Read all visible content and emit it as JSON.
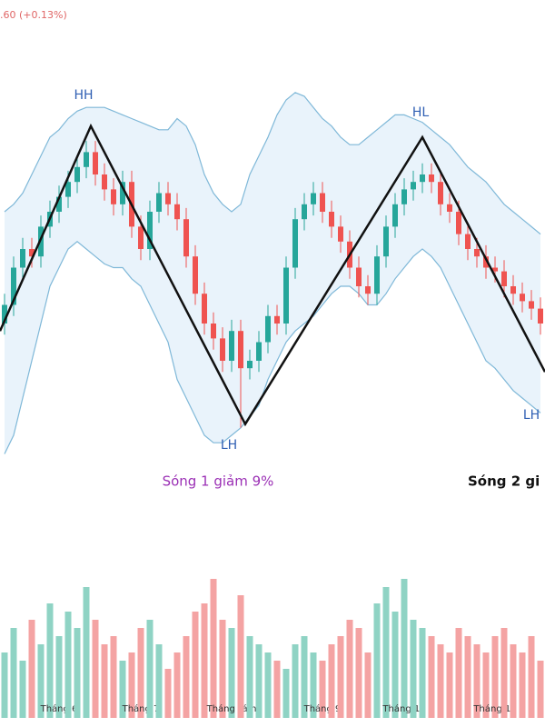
{
  "chart_data": {
    "type": "candlestick",
    "header": ".60 (+0.13%)",
    "categories": [
      null,
      null,
      null,
      null,
      null,
      null,
      "Tháng 6",
      null,
      null,
      null,
      null,
      null,
      null,
      null,
      null,
      "Tháng 7",
      null,
      null,
      null,
      null,
      null,
      null,
      null,
      null,
      null,
      "Tháng Tám",
      null,
      null,
      null,
      null,
      null,
      null,
      null,
      null,
      null,
      "Tháng 9",
      null,
      null,
      null,
      null,
      null,
      null,
      null,
      null,
      "Tháng 10",
      null,
      null,
      null,
      null,
      null,
      null,
      null,
      null,
      null,
      "Tháng 11",
      null,
      null,
      null,
      null,
      null
    ],
    "open": [
      40,
      45,
      55,
      60,
      58,
      66,
      70,
      74,
      78,
      82,
      86,
      80,
      76,
      72,
      78,
      66,
      60,
      70,
      75,
      72,
      68,
      58,
      48,
      40,
      36,
      30,
      38,
      28,
      30,
      35,
      42,
      40,
      55,
      68,
      72,
      75,
      70,
      66,
      62,
      55,
      50,
      48,
      58,
      66,
      72,
      76,
      78,
      80,
      78,
      72,
      70,
      64,
      60,
      58,
      55,
      54,
      50,
      48,
      46,
      44
    ],
    "close": [
      45,
      55,
      60,
      58,
      66,
      70,
      74,
      78,
      82,
      86,
      80,
      76,
      72,
      78,
      66,
      60,
      70,
      75,
      72,
      68,
      58,
      48,
      40,
      36,
      30,
      38,
      28,
      30,
      35,
      42,
      40,
      55,
      68,
      72,
      75,
      70,
      66,
      62,
      55,
      50,
      48,
      58,
      66,
      72,
      76,
      78,
      80,
      78,
      72,
      70,
      64,
      60,
      58,
      55,
      54,
      50,
      48,
      46,
      44,
      40
    ],
    "high": [
      48,
      58,
      63,
      63,
      69,
      73,
      77,
      81,
      85,
      89,
      89,
      83,
      79,
      81,
      81,
      69,
      73,
      78,
      78,
      75,
      71,
      61,
      51,
      43,
      39,
      41,
      41,
      33,
      38,
      45,
      45,
      58,
      71,
      75,
      78,
      78,
      73,
      69,
      65,
      58,
      53,
      61,
      69,
      75,
      79,
      81,
      83,
      83,
      81,
      75,
      73,
      67,
      63,
      61,
      58,
      57,
      53,
      51,
      49,
      47
    ],
    "low": [
      37,
      42,
      52,
      55,
      55,
      63,
      67,
      71,
      75,
      79,
      77,
      73,
      69,
      69,
      63,
      57,
      57,
      67,
      69,
      65,
      55,
      45,
      37,
      33,
      27,
      27,
      12,
      25,
      27,
      32,
      37,
      37,
      52,
      65,
      69,
      67,
      63,
      59,
      52,
      47,
      45,
      45,
      55,
      63,
      69,
      73,
      75,
      75,
      69,
      67,
      61,
      57,
      55,
      52,
      51,
      47,
      45,
      43,
      41,
      37
    ],
    "volume": [
      40,
      55,
      35,
      60,
      45,
      70,
      50,
      65,
      55,
      80,
      60,
      45,
      50,
      35,
      40,
      55,
      60,
      45,
      30,
      40,
      50,
      65,
      70,
      85,
      60,
      55,
      75,
      50,
      45,
      40,
      35,
      30,
      45,
      50,
      40,
      35,
      45,
      50,
      60,
      55,
      40,
      70,
      80,
      65,
      85,
      60,
      55,
      50,
      45,
      40,
      55,
      50,
      45,
      40,
      50,
      55,
      45,
      40,
      50,
      35
    ],
    "band_upper": [
      70,
      72,
      75,
      80,
      85,
      90,
      92,
      95,
      97,
      98,
      98,
      98,
      97,
      96,
      95,
      94,
      93,
      92,
      92,
      95,
      93,
      88,
      80,
      75,
      72,
      70,
      72,
      80,
      85,
      90,
      96,
      100,
      102,
      101,
      98,
      95,
      93,
      90,
      88,
      88,
      90,
      92,
      94,
      96,
      96,
      95,
      94,
      92,
      90,
      88,
      85,
      82,
      80,
      78,
      75,
      72,
      70,
      68,
      66,
      64
    ],
    "band_lower": [
      5,
      10,
      20,
      30,
      40,
      50,
      55,
      60,
      62,
      60,
      58,
      56,
      55,
      55,
      52,
      50,
      45,
      40,
      35,
      25,
      20,
      15,
      10,
      8,
      8,
      10,
      12,
      15,
      18,
      25,
      30,
      35,
      38,
      40,
      42,
      45,
      48,
      50,
      50,
      48,
      45,
      45,
      48,
      52,
      55,
      58,
      60,
      58,
      55,
      50,
      45,
      40,
      35,
      30,
      28,
      25,
      22,
      20,
      18,
      16
    ],
    "ylim": [
      0,
      100
    ],
    "volume_lim": [
      0,
      100
    ],
    "zigzag": {
      "x": [
        -0.5,
        9.5,
        26.5,
        46,
        59.5
      ],
      "values": [
        38,
        93,
        13,
        90,
        27
      ]
    },
    "annotations": [
      "HH",
      "LH",
      "HL",
      "LH"
    ],
    "wave_labels": [
      "Sóng 1 giảm 9%",
      "Sóng 2 gi"
    ],
    "colors": {
      "up": "#26a69a",
      "down": "#ef5350",
      "vol_up": "#8fd3c4",
      "vol_down": "#f4a3a3",
      "band": "#7fb8d8",
      "zigzag": "#111111"
    }
  }
}
